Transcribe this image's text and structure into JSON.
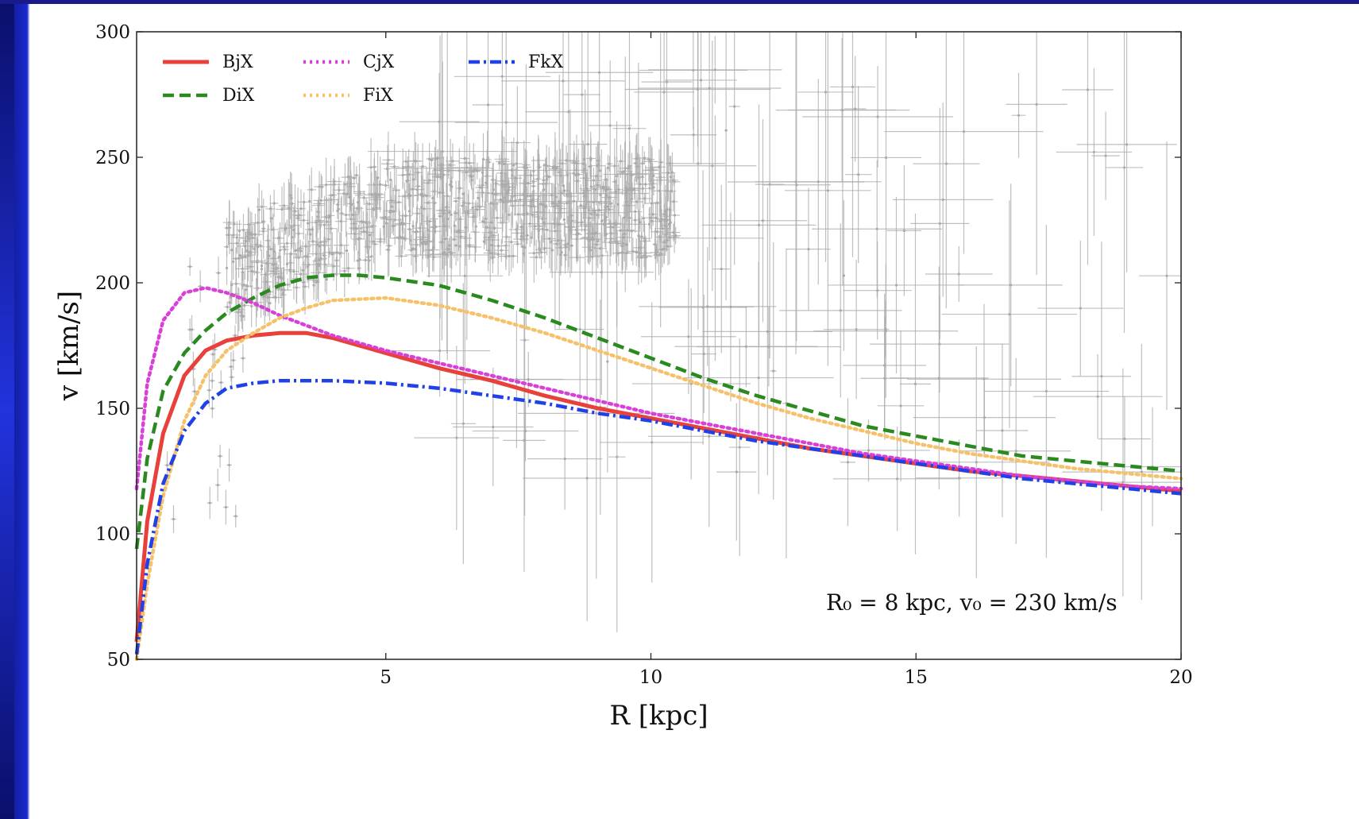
{
  "chart_data": {
    "type": "line",
    "xlabel": "R [kpc]",
    "ylabel": "v [km/s]",
    "xlim": [
      0.3,
      20
    ],
    "ylim": [
      50,
      300
    ],
    "x_ticks": [
      5,
      10,
      15,
      20
    ],
    "y_ticks": [
      50,
      100,
      150,
      200,
      250,
      300
    ],
    "x_tick_labels": [
      "5",
      "10",
      "15",
      "20"
    ],
    "y_tick_labels": [
      "50",
      "100",
      "150",
      "200",
      "250",
      "300"
    ],
    "legend_position": "top-left",
    "legend_layout": "three columns",
    "annotation": {
      "text": "R₀ = 8 kpc, v₀ = 230 km/s",
      "position": "lower-right"
    },
    "series": [
      {
        "name": "BjX",
        "color": "#e8403a",
        "style": "solid",
        "x": [
          0.3,
          0.5,
          0.8,
          1.2,
          1.6,
          2.0,
          2.5,
          3.0,
          3.5,
          4.0,
          5.0,
          6.0,
          7.0,
          8.0,
          9.0,
          10.0,
          11.0,
          12.0,
          13.0,
          14.0,
          15.0,
          16.0,
          17.0,
          18.0,
          19.0,
          20.0
        ],
        "y": [
          57,
          105,
          140,
          163,
          173,
          177,
          179,
          180,
          180,
          178,
          172,
          166,
          161,
          155,
          150,
          146,
          142,
          138,
          134,
          131,
          128,
          125,
          123,
          121,
          119,
          117
        ]
      },
      {
        "name": "DiX",
        "color": "#2a8a1f",
        "style": "dashed",
        "x": [
          0.3,
          0.5,
          0.8,
          1.2,
          1.6,
          2.0,
          2.5,
          3.0,
          3.5,
          4.0,
          4.5,
          5.0,
          6.0,
          7.0,
          8.0,
          9.0,
          10.0,
          11.0,
          12.0,
          13.0,
          14.0,
          15.0,
          16.0,
          17.0,
          18.0,
          19.0,
          20.0
        ],
        "y": [
          94,
          130,
          157,
          172,
          181,
          188,
          194,
          199,
          202,
          203,
          203,
          202,
          199,
          193,
          186,
          178,
          170,
          162,
          155,
          149,
          143,
          139,
          135,
          131,
          129,
          127,
          125
        ]
      },
      {
        "name": "CjX",
        "color": "#d840d8",
        "style": "dotted",
        "x": [
          0.3,
          0.5,
          0.8,
          1.2,
          1.6,
          2.0,
          2.5,
          3.0,
          3.5,
          4.0,
          5.0,
          6.0,
          7.0,
          8.0,
          9.0,
          10.0,
          11.0,
          12.0,
          13.0,
          14.0,
          15.0,
          16.0,
          17.0,
          18.0,
          19.0,
          20.0
        ],
        "y": [
          118,
          160,
          185,
          196,
          198,
          196,
          192,
          187,
          183,
          179,
          173,
          168,
          163,
          158,
          153,
          148,
          144,
          140,
          136,
          132,
          129,
          126,
          123,
          121,
          119,
          118
        ]
      },
      {
        "name": "FiX",
        "color": "#f5c26b",
        "style": "dotted",
        "x": [
          0.3,
          0.5,
          0.8,
          1.2,
          1.6,
          2.0,
          2.5,
          3.0,
          3.5,
          4.0,
          5.0,
          6.0,
          7.0,
          8.0,
          9.0,
          10.0,
          11.0,
          12.0,
          13.0,
          14.0,
          15.0,
          16.0,
          17.0,
          18.0,
          19.0,
          20.0
        ],
        "y": [
          50,
          80,
          115,
          145,
          163,
          173,
          180,
          186,
          190,
          193,
          194,
          191,
          186,
          180,
          173,
          166,
          159,
          152,
          146,
          141,
          136,
          132,
          129,
          126,
          124,
          122
        ]
      },
      {
        "name": "FkX",
        "color": "#2040e8",
        "style": "dashdot",
        "x": [
          0.3,
          0.5,
          0.8,
          1.2,
          1.6,
          2.0,
          2.5,
          3.0,
          3.5,
          4.0,
          5.0,
          6.0,
          7.0,
          8.0,
          9.0,
          10.0,
          11.0,
          12.0,
          13.0,
          14.0,
          15.0,
          16.0,
          17.0,
          18.0,
          19.0,
          20.0
        ],
        "y": [
          52,
          88,
          120,
          141,
          152,
          158,
          160,
          161,
          161,
          161,
          160,
          158,
          155,
          152,
          148,
          145,
          141,
          137,
          134,
          131,
          128,
          125,
          122,
          120,
          118,
          116
        ]
      }
    ],
    "data_points_color": "#aaaaaa"
  }
}
